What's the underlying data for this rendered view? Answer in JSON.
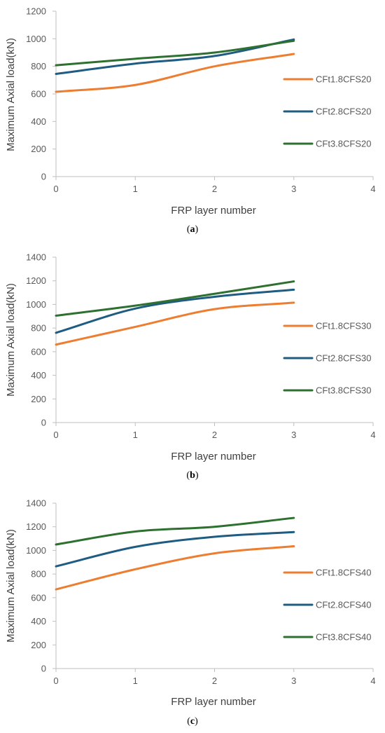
{
  "colors": {
    "series_1": "#ED7D31",
    "series_2": "#1F5C82",
    "series_3": "#2E7030",
    "axis": "#BFBFBF"
  },
  "chart_data": [
    {
      "type": "line",
      "caption": {
        "open": "(",
        "letter": "a",
        "close": ")"
      },
      "xlabel": "FRP layer number",
      "ylabel": "Maximum Axial load(kN)",
      "xlim": [
        0,
        4
      ],
      "ylim": [
        0,
        1200
      ],
      "x_ticks": [
        "0",
        "1",
        "2",
        "3",
        "4"
      ],
      "y_ticks": [
        "0",
        "200",
        "400",
        "600",
        "800",
        "1000",
        "1200"
      ],
      "x": [
        0,
        1,
        2,
        3
      ],
      "legend_position": "right",
      "series": [
        {
          "name": "CFt1.8CFS20",
          "values": [
            615,
            665,
            800,
            890
          ]
        },
        {
          "name": "CFt2.8CFS20",
          "values": [
            745,
            820,
            875,
            995
          ]
        },
        {
          "name": "CFt3.8CFS20",
          "values": [
            808,
            855,
            900,
            985
          ]
        }
      ]
    },
    {
      "type": "line",
      "caption": {
        "open": "(",
        "letter": "b",
        "close": ")"
      },
      "xlabel": "FRP layer number",
      "ylabel": "Maximum Axial load(kN)",
      "xlim": [
        0,
        4
      ],
      "ylim": [
        0,
        1400
      ],
      "x_ticks": [
        "0",
        "1",
        "2",
        "3",
        "4"
      ],
      "y_ticks": [
        "0",
        "200",
        "400",
        "600",
        "800",
        "1000",
        "1200",
        "1400"
      ],
      "x": [
        0,
        1,
        2,
        3
      ],
      "legend_position": "right",
      "series": [
        {
          "name": "CFt1.8CFS30",
          "values": [
            660,
            810,
            960,
            1015
          ]
        },
        {
          "name": "CFt2.8CFS30",
          "values": [
            760,
            965,
            1065,
            1125
          ]
        },
        {
          "name": "CFt3.8CFS30",
          "values": [
            905,
            990,
            1090,
            1195
          ]
        }
      ]
    },
    {
      "type": "line",
      "caption": {
        "open": "(",
        "letter": "c",
        "close": ")"
      },
      "xlabel": "FRP layer number",
      "ylabel": "Maximum Axial load(kN)",
      "xlim": [
        0,
        4
      ],
      "ylim": [
        0,
        1400
      ],
      "x_ticks": [
        "0",
        "1",
        "2",
        "3",
        "4"
      ],
      "y_ticks": [
        "0",
        "200",
        "400",
        "600",
        "800",
        "1000",
        "1200",
        "1400"
      ],
      "x": [
        0,
        1,
        2,
        3
      ],
      "legend_position": "right",
      "series": [
        {
          "name": "CFt1.8CFS40",
          "values": [
            670,
            840,
            975,
            1035
          ]
        },
        {
          "name": "CFt2.8CFS40",
          "values": [
            865,
            1030,
            1115,
            1155
          ]
        },
        {
          "name": "CFt3.8CFS40",
          "values": [
            1050,
            1160,
            1200,
            1275
          ]
        }
      ]
    }
  ]
}
